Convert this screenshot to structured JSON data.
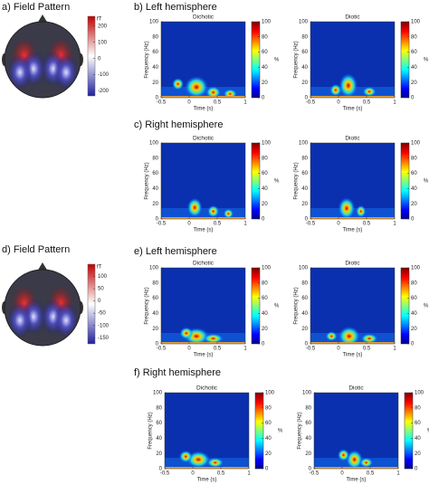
{
  "headings": [
    "a) Field Pattern",
    "b) Left hemisphere",
    "c) Right hemisphere",
    "d) Field Pattern",
    "e) Left hemisphere",
    "f) Right hemisphere"
  ],
  "chart_data": [
    {
      "type": "topomap",
      "colorbar": {
        "label": "fT",
        "lim": [
          -230,
          260
        ],
        "ticks": [
          200,
          100,
          0,
          -100,
          -200
        ]
      }
    },
    {
      "type": "heatmap",
      "title": "Dichotic",
      "xlabel": "Time (s)",
      "ylabel": "Frequency (Hz)",
      "xlim": [
        -0.5,
        1
      ],
      "xticks": [
        -0.5,
        0,
        0.5,
        1
      ],
      "ylim": [
        0,
        100
      ],
      "yticks": [
        0,
        20,
        40,
        60,
        80,
        100
      ],
      "colorbar": {
        "label": "%",
        "lim": [
          0,
          100
        ],
        "ticks": [
          0,
          20,
          40,
          60,
          80,
          100
        ]
      }
    },
    {
      "type": "heatmap",
      "title": "Diotic",
      "xlabel": "Time (s)",
      "ylabel": "Frequency (Hz)",
      "xlim": [
        -0.5,
        1
      ],
      "xticks": [
        -0.5,
        0,
        0.5,
        1
      ],
      "ylim": [
        0,
        100
      ],
      "yticks": [
        0,
        20,
        40,
        60,
        80,
        100
      ],
      "colorbar": {
        "label": "%",
        "lim": [
          0,
          100
        ],
        "ticks": [
          0,
          20,
          40,
          60,
          80,
          100
        ]
      }
    },
    {
      "type": "heatmap",
      "title": "Dichotic",
      "xlabel": "Time (s)",
      "ylabel": "Frequency (Hz)",
      "xlim": [
        -0.5,
        1
      ],
      "xticks": [
        -0.5,
        0,
        0.5,
        1
      ],
      "ylim": [
        0,
        100
      ],
      "yticks": [
        0,
        20,
        40,
        60,
        80,
        100
      ],
      "colorbar": {
        "label": "%",
        "lim": [
          0,
          100
        ],
        "ticks": [
          0,
          20,
          40,
          60,
          80,
          100
        ]
      }
    },
    {
      "type": "heatmap",
      "title": "Diotic",
      "xlabel": "Time (s)",
      "ylabel": "Frequency (Hz)",
      "xlim": [
        -0.5,
        1
      ],
      "xticks": [
        -0.5,
        0,
        0.5,
        1
      ],
      "ylim": [
        0,
        100
      ],
      "yticks": [
        0,
        20,
        40,
        60,
        80,
        100
      ],
      "colorbar": {
        "label": "%",
        "lim": [
          0,
          100
        ],
        "ticks": [
          0,
          20,
          40,
          60,
          80,
          100
        ]
      }
    },
    {
      "type": "topomap",
      "colorbar": {
        "label": "fT",
        "lim": [
          -175,
          150
        ],
        "ticks": [
          100,
          50,
          0,
          -50,
          -100,
          -150
        ]
      }
    },
    {
      "type": "heatmap",
      "title": "Dichotic",
      "xlabel": "Time (s)",
      "ylabel": "Frequency (Hz)",
      "xlim": [
        -0.5,
        1
      ],
      "xticks": [
        -0.5,
        0,
        0.5,
        1
      ],
      "ylim": [
        0,
        100
      ],
      "yticks": [
        0,
        20,
        40,
        60,
        80,
        100
      ],
      "colorbar": {
        "label": "%",
        "lim": [
          0,
          100
        ],
        "ticks": [
          0,
          20,
          40,
          60,
          80,
          100
        ]
      }
    },
    {
      "type": "heatmap",
      "title": "Diotic",
      "xlabel": "Time (s)",
      "ylabel": "Frequency (Hz)",
      "xlim": [
        -0.5,
        1
      ],
      "xticks": [
        -0.5,
        0,
        0.5,
        1
      ],
      "ylim": [
        0,
        100
      ],
      "yticks": [
        0,
        20,
        40,
        60,
        80,
        100
      ],
      "colorbar": {
        "label": "%",
        "lim": [
          0,
          100
        ],
        "ticks": [
          0,
          20,
          40,
          60,
          80,
          100
        ]
      }
    },
    {
      "type": "heatmap",
      "title": "Dichotic",
      "xlabel": "Time (s)",
      "ylabel": "Frequency (Hz)",
      "xlim": [
        -0.5,
        1
      ],
      "xticks": [
        -0.5,
        0,
        0.5,
        1
      ],
      "ylim": [
        0,
        100
      ],
      "yticks": [
        0,
        20,
        40,
        60,
        80,
        100
      ],
      "colorbar": {
        "label": "%",
        "lim": [
          0,
          100
        ],
        "ticks": [
          0,
          20,
          40,
          60,
          80,
          100
        ]
      }
    },
    {
      "type": "heatmap",
      "title": "Diotic",
      "xlabel": "Time (s)",
      "ylabel": "Frequency (Hz)",
      "xlim": [
        -0.5,
        1
      ],
      "xticks": [
        -0.5,
        0,
        0.5,
        1
      ],
      "ylim": [
        0,
        100
      ],
      "yticks": [
        0,
        20,
        40,
        60,
        80,
        100
      ],
      "colorbar": {
        "label": "%",
        "lim": [
          0,
          100
        ],
        "ticks": [
          0,
          20,
          40,
          60,
          80,
          100
        ]
      }
    }
  ]
}
